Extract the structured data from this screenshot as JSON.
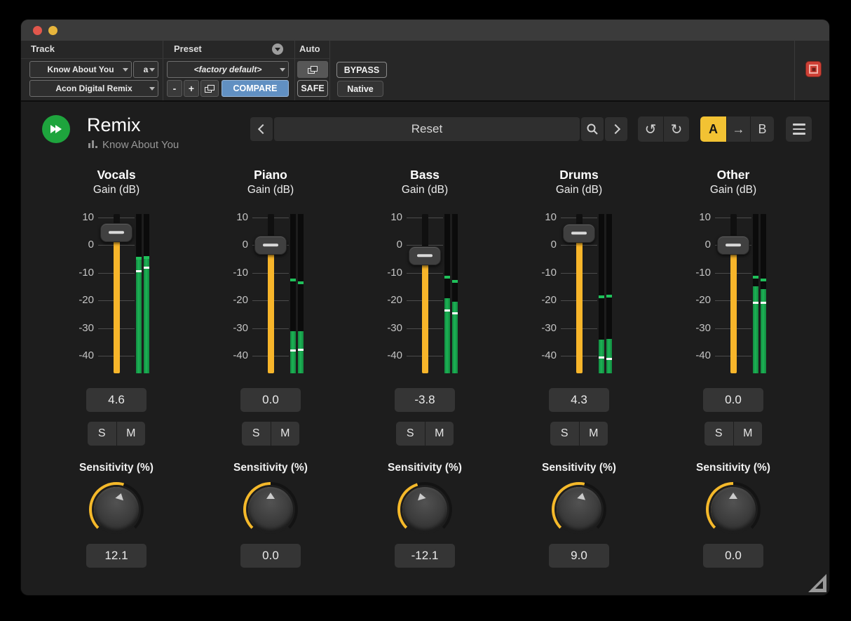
{
  "pt_header": {
    "track_label": "Track",
    "track_name": "Know About You",
    "track_letter": "a",
    "plugin_name": "Acon Digital Remix",
    "preset_label": "Preset",
    "preset_name": "<factory default>",
    "minus_label": "-",
    "plus_label": "+",
    "compare_label": "COMPARE",
    "auto_label": "Auto",
    "safe_label": "SAFE",
    "bypass_label": "BYPASS",
    "format_label": "Native"
  },
  "plugin": {
    "title": "Remix",
    "subtitle": "Know About You",
    "preset_bar": {
      "current_preset": "Reset"
    },
    "toolbar": {
      "undo_icon": "↺",
      "redo_icon": "↻",
      "a_label": "A",
      "ab_arrow": "→",
      "b_label": "B"
    },
    "accent_yellow": "#f5b92a",
    "meter_green": "#17a74a"
  },
  "controls": {
    "gain_label": "Gain (dB)",
    "sensitivity_label": "Sensitivity (%)",
    "solo_label": "S",
    "mute_label": "M"
  },
  "gain_scale": {
    "ticks": [
      10,
      0,
      -10,
      -20,
      -30,
      -40
    ],
    "top_db": 11.7,
    "bottom_db": -46.3
  },
  "strips": [
    {
      "name": "Vocals",
      "gain_value": "4.6",
      "sensitivity_value": "12.1",
      "meter_l": {
        "level_db": -4.2,
        "peak_db": -4.2,
        "marker_db": -8.9
      },
      "meter_r": {
        "level_db": -4.0,
        "peak_db": -4.0,
        "marker_db": -7.6
      }
    },
    {
      "name": "Piano",
      "gain_value": "0.0",
      "sensitivity_value": "0.0",
      "meter_l": {
        "level_db": -30.6,
        "peak_db": -12.2,
        "marker_db": -37.5
      },
      "meter_r": {
        "level_db": -30.6,
        "peak_db": -13.0,
        "marker_db": -37.2
      }
    },
    {
      "name": "Bass",
      "gain_value": "-3.8",
      "sensitivity_value": "-12.1",
      "meter_l": {
        "level_db": -18.6,
        "peak_db": -11.0,
        "marker_db": -23.0
      },
      "meter_r": {
        "level_db": -20.0,
        "peak_db": -12.7,
        "marker_db": -24.2
      }
    },
    {
      "name": "Drums",
      "gain_value": "4.3",
      "sensitivity_value": "9.0",
      "meter_l": {
        "level_db": -33.6,
        "peak_db": -18.3,
        "marker_db": -40.2
      },
      "meter_r": {
        "level_db": -33.4,
        "peak_db": -18.0,
        "marker_db": -40.6
      }
    },
    {
      "name": "Other",
      "gain_value": "0.0",
      "sensitivity_value": "0.0",
      "meter_l": {
        "level_db": -14.4,
        "peak_db": -11.0,
        "marker_db": -20.3
      },
      "meter_r": {
        "level_db": -15.3,
        "peak_db": -12.0,
        "marker_db": -20.3
      }
    }
  ]
}
